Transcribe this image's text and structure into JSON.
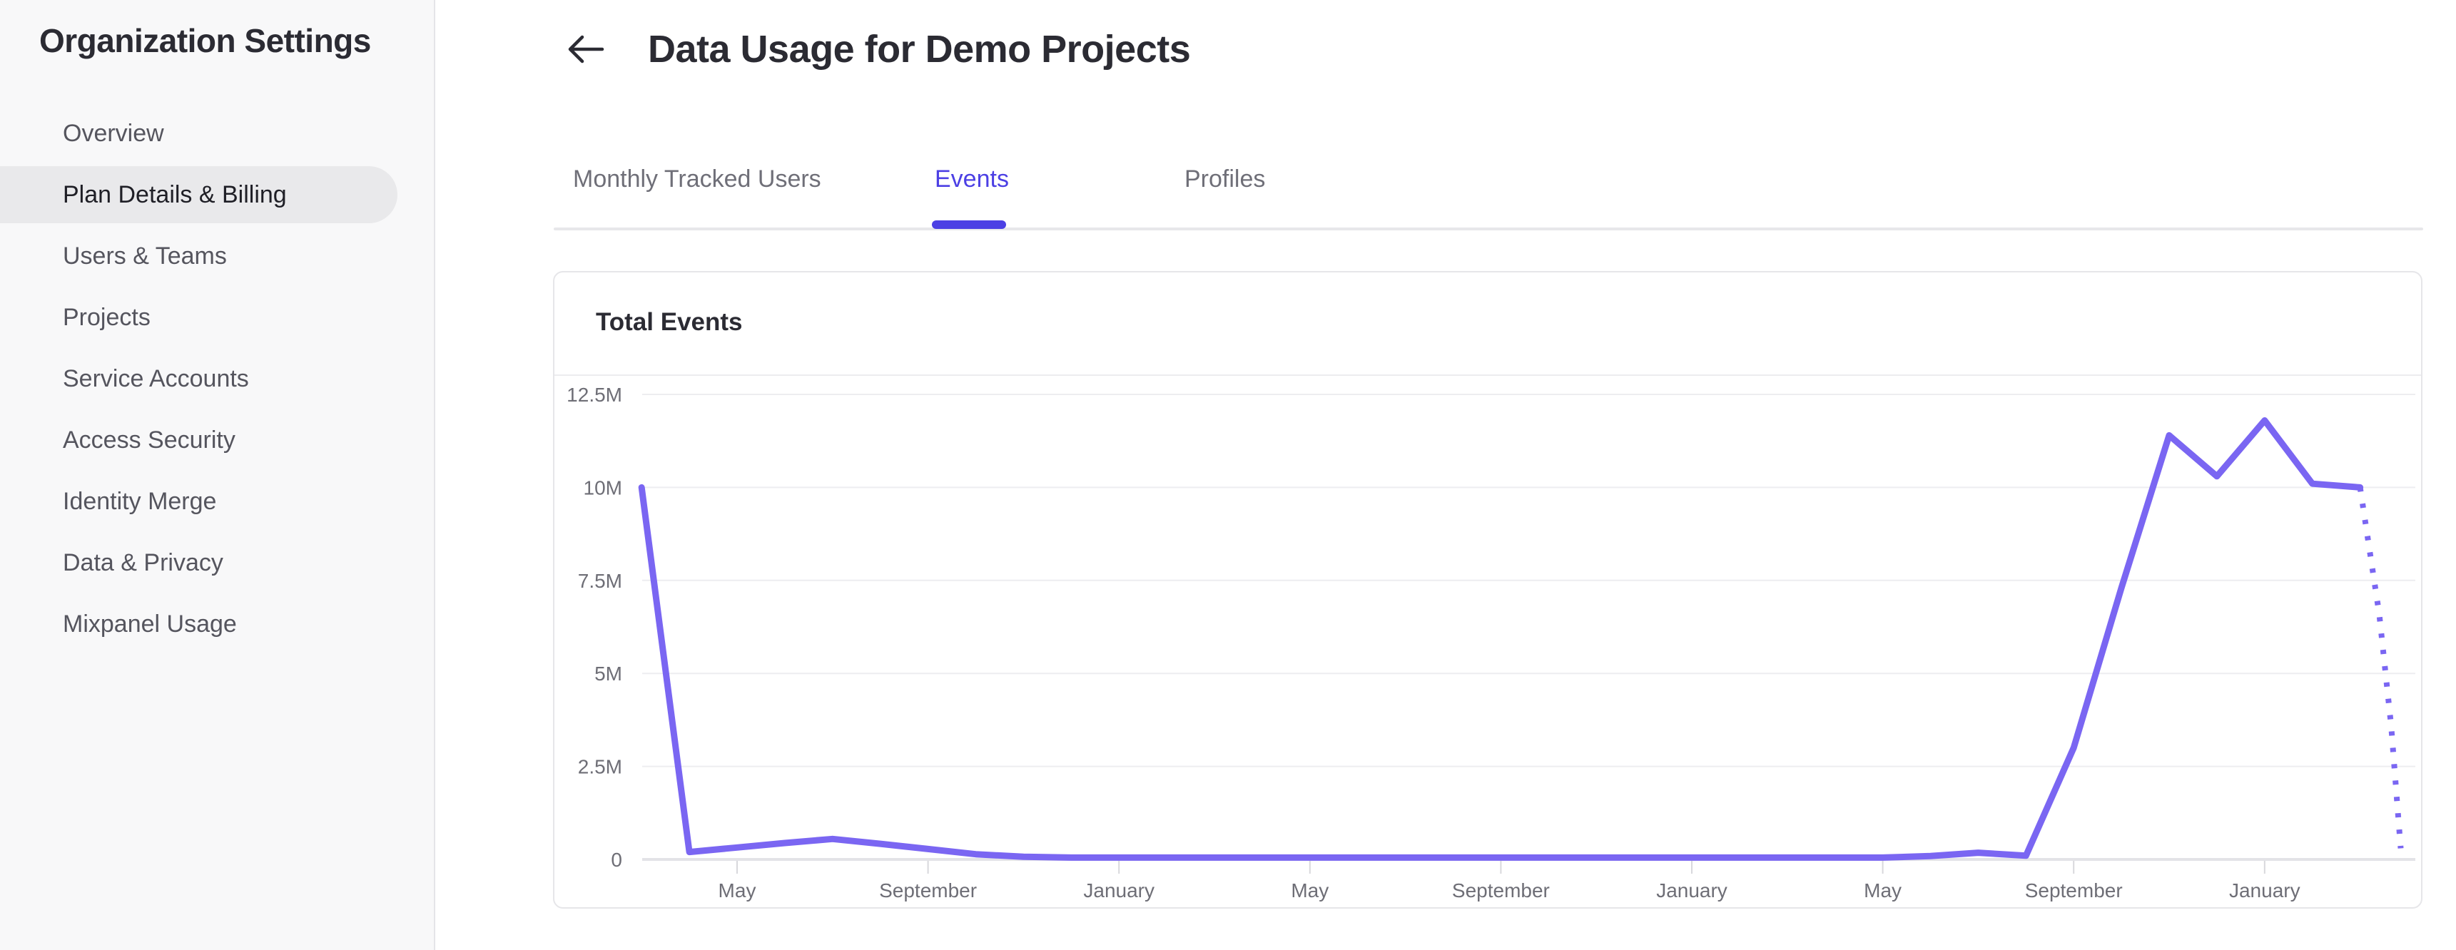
{
  "sidebar": {
    "title": "Organization Settings",
    "items": [
      {
        "label": "Overview",
        "active": false
      },
      {
        "label": "Plan Details & Billing",
        "active": true
      },
      {
        "label": "Users & Teams",
        "active": false
      },
      {
        "label": "Projects",
        "active": false
      },
      {
        "label": "Service Accounts",
        "active": false
      },
      {
        "label": "Access Security",
        "active": false
      },
      {
        "label": "Identity Merge",
        "active": false
      },
      {
        "label": "Data & Privacy",
        "active": false
      },
      {
        "label": "Mixpanel Usage",
        "active": false
      }
    ]
  },
  "header": {
    "title": "Data Usage for Demo Projects",
    "back_icon": "left-arrow"
  },
  "tabs": [
    {
      "label": "Monthly Tracked Users",
      "active": false
    },
    {
      "label": "Events",
      "active": true
    },
    {
      "label": "Profiles",
      "active": false
    }
  ],
  "card": {
    "title": "Total Events"
  },
  "colors": {
    "accent": "#4c40e4",
    "line": "#7a66f2",
    "sidebar_bg": "#f8f8f9",
    "active_pill": "#e9e9eb"
  },
  "chart_data": {
    "type": "line",
    "title": "Total Events",
    "xlabel": "",
    "ylabel": "",
    "y_unit": "millions of events",
    "ylim": [
      0,
      12.5
    ],
    "grid": "horizontal",
    "legend": "none",
    "y_tick_labels": [
      "0",
      "2.5M",
      "5M",
      "7.5M",
      "10M",
      "12.5M"
    ],
    "y_tick_values": [
      0,
      2.5,
      5,
      7.5,
      10,
      12.5
    ],
    "x_tick_labels": [
      "May",
      "September",
      "January",
      "May",
      "September",
      "January",
      "May",
      "September",
      "January"
    ],
    "x_tick_month_indices": [
      2,
      6,
      10,
      14,
      18,
      22,
      26,
      30,
      34
    ],
    "series": [
      {
        "name": "Total Events",
        "style": "solid",
        "points_month_valueM": [
          [
            0,
            10.0
          ],
          [
            1,
            0.2
          ],
          [
            2,
            0.32
          ],
          [
            3,
            0.44
          ],
          [
            4,
            0.55
          ],
          [
            5,
            0.42
          ],
          [
            6,
            0.28
          ],
          [
            7,
            0.14
          ],
          [
            8,
            0.07
          ],
          [
            9,
            0.05
          ],
          [
            10,
            0.05
          ],
          [
            11,
            0.05
          ],
          [
            12,
            0.05
          ],
          [
            13,
            0.05
          ],
          [
            14,
            0.05
          ],
          [
            15,
            0.05
          ],
          [
            16,
            0.05
          ],
          [
            17,
            0.05
          ],
          [
            18,
            0.05
          ],
          [
            19,
            0.05
          ],
          [
            20,
            0.05
          ],
          [
            21,
            0.05
          ],
          [
            22,
            0.05
          ],
          [
            23,
            0.05
          ],
          [
            24,
            0.05
          ],
          [
            25,
            0.05
          ],
          [
            26,
            0.05
          ],
          [
            27,
            0.09
          ],
          [
            28,
            0.18
          ],
          [
            29,
            0.1
          ],
          [
            30,
            3.0
          ],
          [
            31,
            7.3
          ],
          [
            32,
            11.4
          ],
          [
            33,
            10.3
          ],
          [
            34,
            11.8
          ],
          [
            35,
            10.1
          ],
          [
            36,
            10.0
          ]
        ]
      },
      {
        "name": "Total Events (projected)",
        "style": "dotted",
        "points_month_valueM": [
          [
            36,
            10.0
          ],
          [
            36.4,
            6.6
          ],
          [
            36.65,
            3.6
          ],
          [
            36.85,
            0.3
          ]
        ]
      }
    ]
  }
}
